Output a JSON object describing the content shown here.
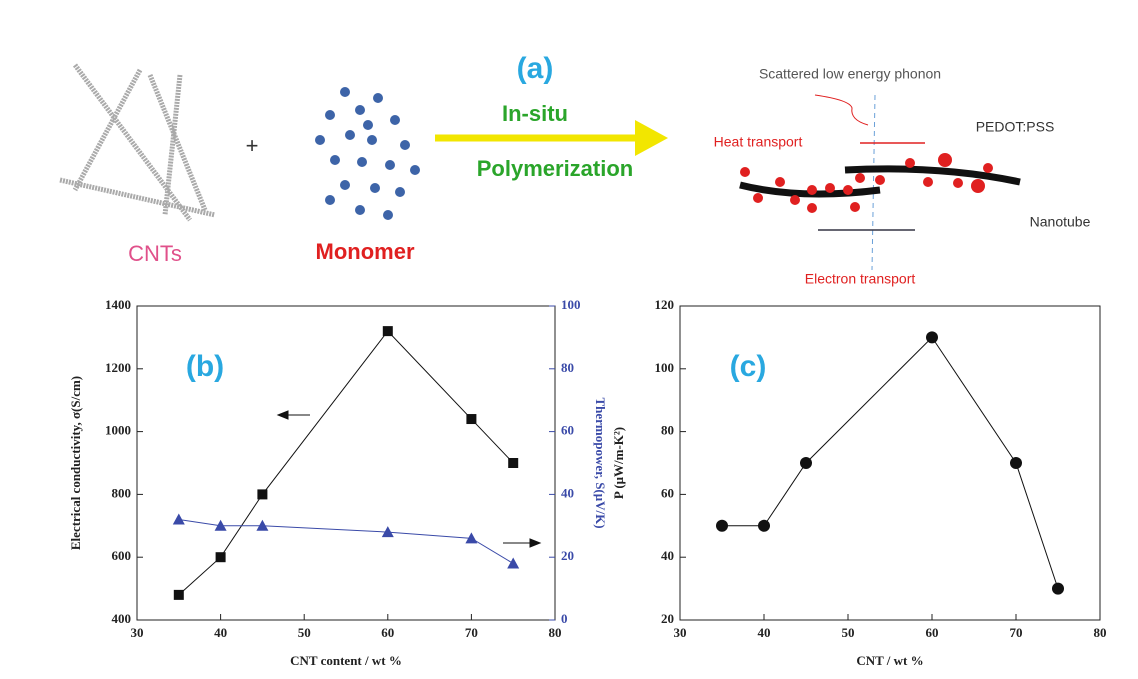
{
  "schematic": {
    "panel_label": "(a)",
    "step_top": "In-situ",
    "step_bottom": "Polymerization",
    "left_label": "CNTs",
    "plus": "+",
    "middle_label": "Monomer",
    "phonon_label": "Scattered low energy phonon",
    "heat_label": "Heat transport",
    "pedot_label": "PEDOT:PSS",
    "nanotube_label": "Nanotube",
    "electron_label": "Electron transport"
  },
  "chart_data": [
    {
      "type": "scatter-line",
      "panel_label": "(b)",
      "xlabel": "CNT content / wt %",
      "ylabel": "Electrical conductivity, σ(S/cm)",
      "y2label": "Thermopower, S(μV/K)",
      "xlim": [
        30,
        80
      ],
      "xticks": [
        30,
        40,
        50,
        60,
        70,
        80
      ],
      "ylim": [
        400,
        1400
      ],
      "yticks": [
        400,
        600,
        800,
        1000,
        1200,
        1400
      ],
      "y2lim": [
        0,
        100
      ],
      "y2ticks": [
        0,
        20,
        40,
        60,
        80,
        100
      ],
      "x": [
        35,
        40,
        45,
        60,
        70,
        75
      ],
      "series": [
        {
          "color": "#111111",
          "marker": "square",
          "values": [
            480,
            600,
            800,
            1320,
            1040,
            900
          ]
        },
        {
          "color": "#3a4aa8",
          "marker": "triangle",
          "axis": "y2",
          "values": [
            32,
            30,
            30,
            28,
            26,
            18
          ]
        }
      ]
    },
    {
      "type": "scatter-line",
      "panel_label": "(c)",
      "xlabel": "CNT / wt %",
      "ylabel": "P (μW/m-K²)",
      "xlim": [
        30,
        80
      ],
      "xticks": [
        30,
        40,
        50,
        60,
        70,
        80
      ],
      "ylim": [
        20,
        120
      ],
      "yticks": [
        20,
        40,
        60,
        80,
        100,
        120
      ],
      "x": [
        35,
        40,
        45,
        60,
        70,
        75
      ],
      "series": [
        {
          "color": "#111111",
          "marker": "circle",
          "values": [
            50,
            50,
            70,
            110,
            70,
            30
          ]
        }
      ]
    }
  ]
}
